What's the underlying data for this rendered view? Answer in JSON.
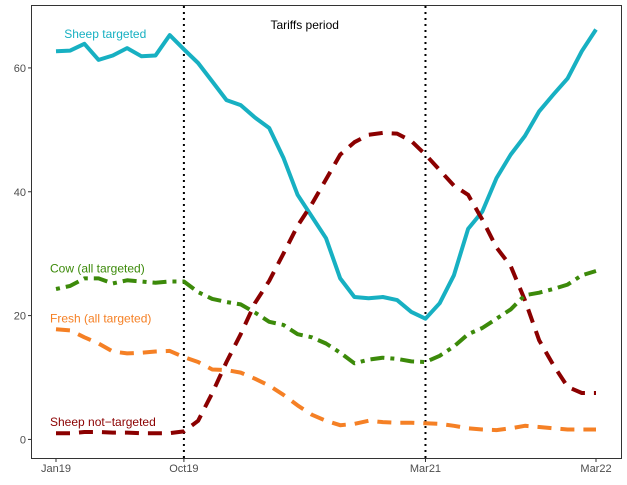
{
  "chart_data": {
    "type": "line",
    "title": "",
    "xlabel": "",
    "ylabel": "",
    "x_start": "Jan19",
    "x_end": "Mar22",
    "xticks": [
      {
        "index": 0,
        "label": "Jan19"
      },
      {
        "index": 9,
        "label": "Oct19"
      },
      {
        "index": 26,
        "label": "Mar21"
      },
      {
        "index": 38,
        "label": "Mar22"
      }
    ],
    "ylim": [
      -3,
      70
    ],
    "yticks": [
      0,
      20,
      40,
      60
    ],
    "grid": false,
    "annotations": {
      "period_label": "Tariffs period",
      "period_start_index": 9,
      "period_end_index": 26
    },
    "series": [
      {
        "name": "Sheep targeted",
        "color": "#17B0C2",
        "dash": "solid",
        "values": [
          62.7,
          62.8,
          63.9,
          61.3,
          62.0,
          63.2,
          61.9,
          62.0,
          65.3,
          63.0,
          60.8,
          57.8,
          54.8,
          54.0,
          52.0,
          50.3,
          45.5,
          39.5,
          36.0,
          32.5,
          26.0,
          23.0,
          22.8,
          23.0,
          22.5,
          20.6,
          19.5,
          22.0,
          26.5,
          34.0,
          36.8,
          42.2,
          46.0,
          49.0,
          53.0,
          55.7,
          58.3,
          62.7,
          66.2
        ]
      },
      {
        "name": "Sheep not-targeted",
        "color": "#8B0000",
        "dash": "longdash",
        "values": [
          1.0,
          1.0,
          1.2,
          1.2,
          1.1,
          1.1,
          1.0,
          1.0,
          1.0,
          1.3,
          3.0,
          7.5,
          12.5,
          17.0,
          22.0,
          25.6,
          30.0,
          34.5,
          38.0,
          42.0,
          46.0,
          48.0,
          49.2,
          49.5,
          49.4,
          48.2,
          46.0,
          43.5,
          41.0,
          39.5,
          35.5,
          31.0,
          28.0,
          22.5,
          16.0,
          12.0,
          8.5,
          7.5,
          7.5
        ]
      },
      {
        "name": "Cow (all targeted)",
        "color": "#3C8A0A",
        "dash": "dotdash",
        "values": [
          24.3,
          24.8,
          26.0,
          26.0,
          25.2,
          25.7,
          25.5,
          25.3,
          25.5,
          25.5,
          23.8,
          22.7,
          22.2,
          21.8,
          20.5,
          19.0,
          18.5,
          17.0,
          16.5,
          15.5,
          14.0,
          12.3,
          12.9,
          13.2,
          13.0,
          12.6,
          12.5,
          13.5,
          15.0,
          17.0,
          18.0,
          19.5,
          21.0,
          23.3,
          23.7,
          24.3,
          25.0,
          26.5,
          27.2
        ]
      },
      {
        "name": "Fresh (all targeted)",
        "color": "#F58025",
        "dash": "longdash",
        "values": [
          17.8,
          17.6,
          16.5,
          15.5,
          14.2,
          13.9,
          14.0,
          14.2,
          14.3,
          13.3,
          12.5,
          11.3,
          11.2,
          10.8,
          9.8,
          8.7,
          7.2,
          5.5,
          4.0,
          3.0,
          2.3,
          2.5,
          3.0,
          2.8,
          2.7,
          2.7,
          2.6,
          2.5,
          2.2,
          1.8,
          1.6,
          1.5,
          1.8,
          2.2,
          2.0,
          1.8,
          1.6,
          1.6,
          1.6
        ]
      }
    ],
    "legend": [
      {
        "label": "Sheep targeted",
        "series": 0,
        "index": 1,
        "value": 65.5,
        "color": "#17B0C2"
      },
      {
        "label": "Cow (all targeted)",
        "series": 2,
        "index": 0,
        "value": 27.6,
        "color": "#3C8A0A"
      },
      {
        "label": "Fresh (all targeted)",
        "series": 3,
        "index": 0,
        "value": 19.5,
        "color": "#F58025"
      },
      {
        "label": "Sheep not−targeted",
        "series": 1,
        "index": 0,
        "value": 2.8,
        "color": "#8B0000"
      }
    ]
  }
}
